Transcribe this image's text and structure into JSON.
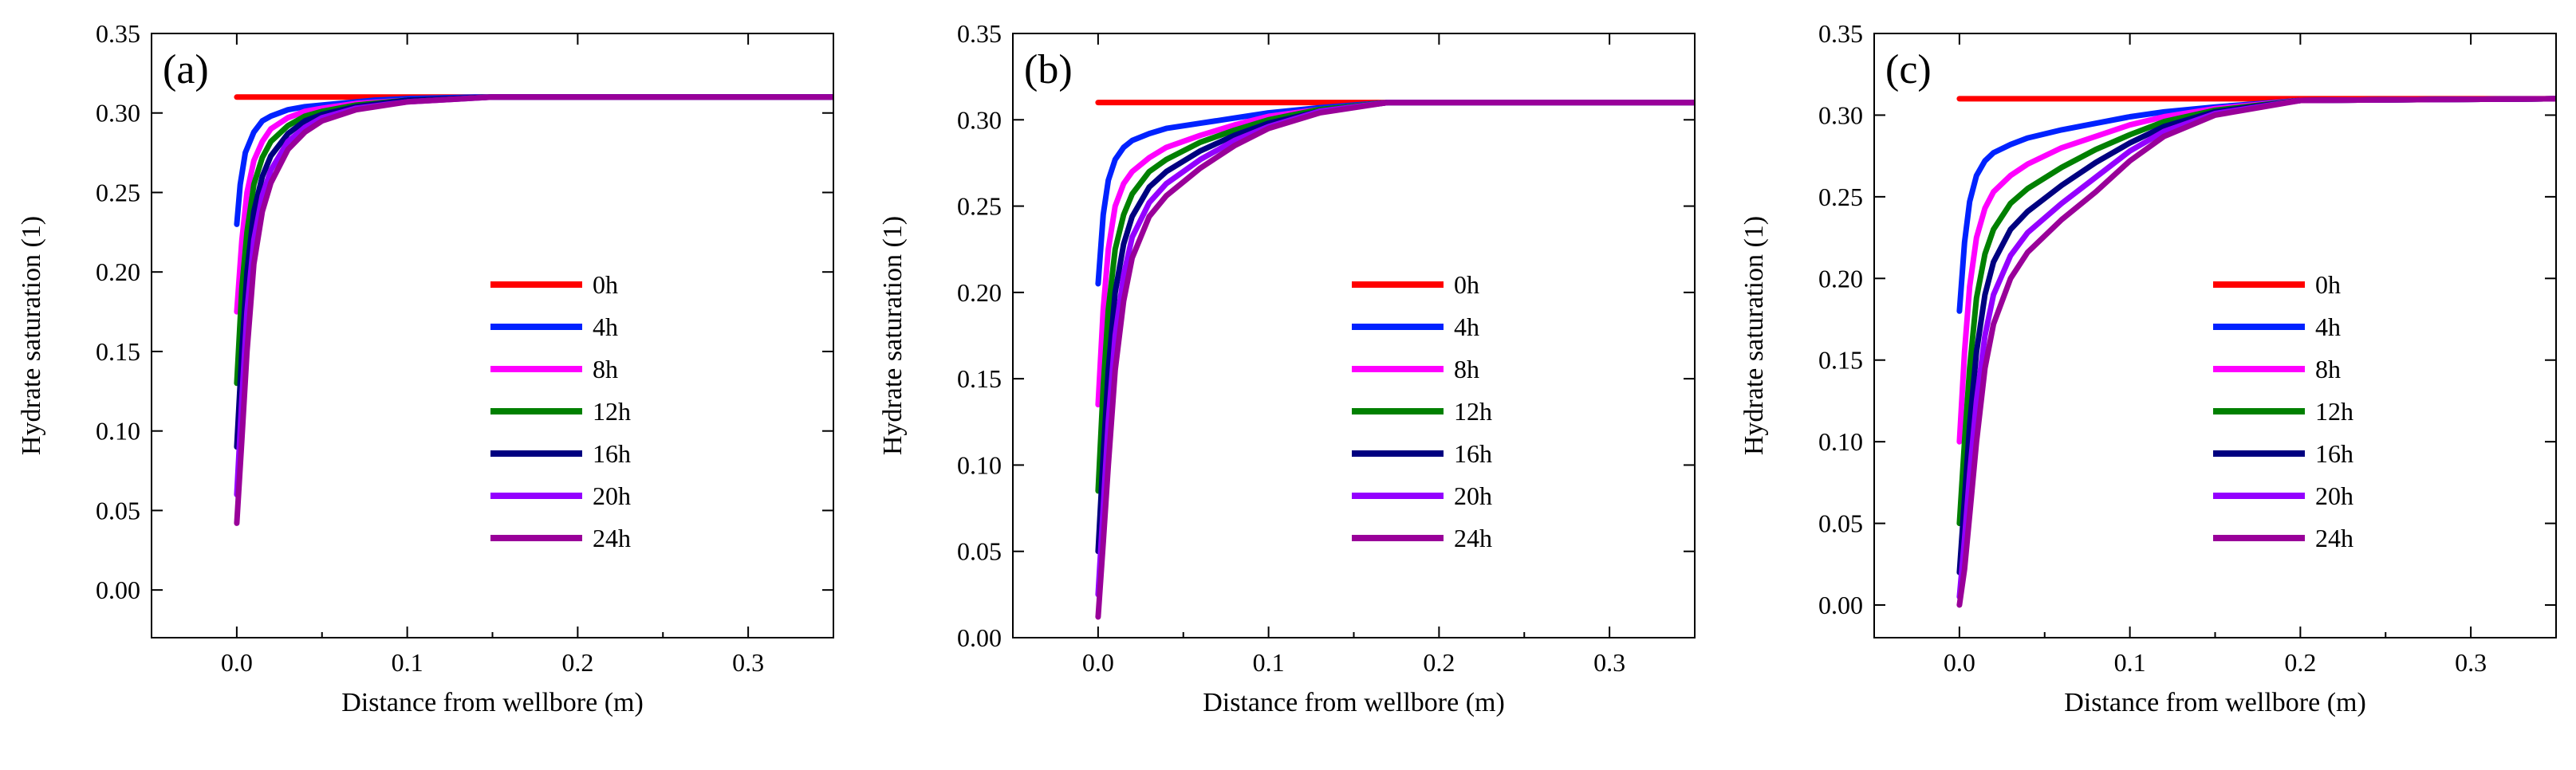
{
  "figure": {
    "panel_count": 3,
    "series_colors": {
      "0h": "#ff0000",
      "4h": "#0022ff",
      "8h": "#ff00ff",
      "12h": "#008000",
      "16h": "#000080",
      "20h": "#9400ff",
      "24h": "#990099"
    }
  },
  "chart_data": [
    {
      "type": "line",
      "panel_label": "(a)",
      "xlabel": "Distance from wellbore (m)",
      "ylabel": "Hydrate saturation (1)",
      "xlim": [
        -0.05,
        0.35
      ],
      "ylim": [
        -0.03,
        0.35
      ],
      "xticks": [
        0.0,
        0.1,
        0.2,
        0.3
      ],
      "xtick_labels": [
        "0.0",
        "0.1",
        "0.2",
        "0.3"
      ],
      "yticks": [
        0.0,
        0.05,
        0.1,
        0.15,
        0.2,
        0.25,
        0.3,
        0.35
      ],
      "ytick_labels": [
        "0.00",
        "0.05",
        "0.10",
        "0.15",
        "0.20",
        "0.25",
        "0.30",
        "0.35"
      ],
      "legend_position": "center-right",
      "series": [
        {
          "name": "0h",
          "x": [
            0.0,
            0.35
          ],
          "y": [
            0.31,
            0.31
          ]
        },
        {
          "name": "4h",
          "x": [
            0.0,
            0.002,
            0.005,
            0.01,
            0.015,
            0.02,
            0.03,
            0.04,
            0.06,
            0.08,
            0.1,
            0.14,
            0.35
          ],
          "y": [
            0.23,
            0.255,
            0.275,
            0.288,
            0.295,
            0.298,
            0.302,
            0.304,
            0.306,
            0.308,
            0.309,
            0.31,
            0.31
          ]
        },
        {
          "name": "8h",
          "x": [
            0.0,
            0.003,
            0.006,
            0.01,
            0.015,
            0.02,
            0.03,
            0.04,
            0.05,
            0.07,
            0.1,
            0.15,
            0.35
          ],
          "y": [
            0.175,
            0.22,
            0.25,
            0.27,
            0.282,
            0.29,
            0.297,
            0.301,
            0.303,
            0.306,
            0.308,
            0.31,
            0.31
          ]
        },
        {
          "name": "12h",
          "x": [
            0.0,
            0.003,
            0.006,
            0.01,
            0.015,
            0.02,
            0.03,
            0.04,
            0.05,
            0.07,
            0.1,
            0.15,
            0.35
          ],
          "y": [
            0.13,
            0.19,
            0.225,
            0.255,
            0.272,
            0.282,
            0.292,
            0.298,
            0.301,
            0.305,
            0.308,
            0.31,
            0.31
          ]
        },
        {
          "name": "16h",
          "x": [
            0.0,
            0.003,
            0.006,
            0.01,
            0.015,
            0.02,
            0.03,
            0.04,
            0.05,
            0.07,
            0.1,
            0.15,
            0.35
          ],
          "y": [
            0.09,
            0.15,
            0.2,
            0.238,
            0.26,
            0.273,
            0.287,
            0.295,
            0.299,
            0.304,
            0.308,
            0.31,
            0.31
          ]
        },
        {
          "name": "20h",
          "x": [
            0.0,
            0.003,
            0.006,
            0.01,
            0.015,
            0.02,
            0.03,
            0.04,
            0.05,
            0.07,
            0.1,
            0.15,
            0.35
          ],
          "y": [
            0.06,
            0.12,
            0.175,
            0.22,
            0.248,
            0.264,
            0.282,
            0.291,
            0.297,
            0.303,
            0.307,
            0.31,
            0.31
          ]
        },
        {
          "name": "24h",
          "x": [
            0.0,
            0.003,
            0.006,
            0.01,
            0.015,
            0.02,
            0.03,
            0.04,
            0.05,
            0.07,
            0.1,
            0.15,
            0.35
          ],
          "y": [
            0.042,
            0.095,
            0.15,
            0.205,
            0.238,
            0.256,
            0.277,
            0.288,
            0.295,
            0.302,
            0.307,
            0.31,
            0.31
          ]
        }
      ]
    },
    {
      "type": "line",
      "panel_label": "(b)",
      "xlabel": "Distance from wellbore (m)",
      "ylabel": "Hydrate saturation (1)",
      "xlim": [
        -0.05,
        0.35
      ],
      "ylim": [
        0.0,
        0.35
      ],
      "xticks": [
        0.0,
        0.1,
        0.2,
        0.3
      ],
      "xtick_labels": [
        "0.0",
        "0.1",
        "0.2",
        "0.3"
      ],
      "yticks": [
        0.0,
        0.05,
        0.1,
        0.15,
        0.2,
        0.25,
        0.3,
        0.35
      ],
      "ytick_labels": [
        "0.00",
        "0.05",
        "0.10",
        "0.15",
        "0.20",
        "0.25",
        "0.30",
        "0.35"
      ],
      "legend_position": "center-right",
      "series": [
        {
          "name": "0h",
          "x": [
            0.0,
            0.35
          ],
          "y": [
            0.31,
            0.31
          ]
        },
        {
          "name": "4h",
          "x": [
            0.0,
            0.003,
            0.006,
            0.01,
            0.015,
            0.02,
            0.03,
            0.04,
            0.06,
            0.08,
            0.1,
            0.13,
            0.17,
            0.35
          ],
          "y": [
            0.205,
            0.245,
            0.265,
            0.277,
            0.284,
            0.288,
            0.292,
            0.295,
            0.298,
            0.301,
            0.304,
            0.307,
            0.31,
            0.31
          ]
        },
        {
          "name": "8h",
          "x": [
            0.0,
            0.003,
            0.006,
            0.01,
            0.015,
            0.02,
            0.03,
            0.04,
            0.06,
            0.08,
            0.1,
            0.13,
            0.17,
            0.35
          ],
          "y": [
            0.135,
            0.19,
            0.225,
            0.25,
            0.263,
            0.27,
            0.278,
            0.284,
            0.291,
            0.297,
            0.302,
            0.306,
            0.31,
            0.31
          ]
        },
        {
          "name": "12h",
          "x": [
            0.0,
            0.003,
            0.006,
            0.01,
            0.015,
            0.02,
            0.03,
            0.04,
            0.06,
            0.08,
            0.1,
            0.13,
            0.17,
            0.35
          ],
          "y": [
            0.085,
            0.145,
            0.19,
            0.225,
            0.245,
            0.257,
            0.27,
            0.277,
            0.287,
            0.294,
            0.3,
            0.306,
            0.31,
            0.31
          ]
        },
        {
          "name": "16h",
          "x": [
            0.0,
            0.003,
            0.006,
            0.01,
            0.015,
            0.02,
            0.03,
            0.04,
            0.06,
            0.08,
            0.1,
            0.13,
            0.17,
            0.35
          ],
          "y": [
            0.05,
            0.105,
            0.155,
            0.2,
            0.228,
            0.244,
            0.261,
            0.27,
            0.282,
            0.291,
            0.298,
            0.305,
            0.31,
            0.31
          ]
        },
        {
          "name": "20h",
          "x": [
            0.0,
            0.003,
            0.006,
            0.01,
            0.015,
            0.02,
            0.03,
            0.04,
            0.06,
            0.08,
            0.1,
            0.13,
            0.17,
            0.35
          ],
          "y": [
            0.025,
            0.075,
            0.125,
            0.175,
            0.21,
            0.232,
            0.252,
            0.263,
            0.277,
            0.288,
            0.296,
            0.305,
            0.31,
            0.31
          ]
        },
        {
          "name": "24h",
          "x": [
            0.0,
            0.003,
            0.006,
            0.01,
            0.015,
            0.02,
            0.03,
            0.04,
            0.06,
            0.08,
            0.1,
            0.13,
            0.17,
            0.35
          ],
          "y": [
            0.012,
            0.055,
            0.1,
            0.155,
            0.195,
            0.22,
            0.244,
            0.256,
            0.272,
            0.285,
            0.295,
            0.304,
            0.31,
            0.31
          ]
        }
      ]
    },
    {
      "type": "line",
      "panel_label": "(c)",
      "xlabel": "Distance from wellbore (m)",
      "ylabel": "Hydrate saturation (1)",
      "xlim": [
        -0.05,
        0.35
      ],
      "ylim": [
        -0.02,
        0.35
      ],
      "xticks": [
        0.0,
        0.1,
        0.2,
        0.3
      ],
      "xtick_labels": [
        "0.0",
        "0.1",
        "0.2",
        "0.3"
      ],
      "yticks": [
        0.0,
        0.05,
        0.1,
        0.15,
        0.2,
        0.25,
        0.3,
        0.35
      ],
      "ytick_labels": [
        "0.00",
        "0.05",
        "0.10",
        "0.15",
        "0.20",
        "0.25",
        "0.30",
        "0.35"
      ],
      "legend_position": "center-right",
      "series": [
        {
          "name": "0h",
          "x": [
            0.0,
            0.35
          ],
          "y": [
            0.31,
            0.31
          ]
        },
        {
          "name": "4h",
          "x": [
            0.0,
            0.003,
            0.006,
            0.01,
            0.015,
            0.02,
            0.03,
            0.04,
            0.06,
            0.08,
            0.1,
            0.12,
            0.15,
            0.2,
            0.35
          ],
          "y": [
            0.18,
            0.222,
            0.247,
            0.263,
            0.272,
            0.277,
            0.282,
            0.286,
            0.291,
            0.295,
            0.299,
            0.302,
            0.305,
            0.309,
            0.31
          ]
        },
        {
          "name": "8h",
          "x": [
            0.0,
            0.003,
            0.006,
            0.01,
            0.015,
            0.02,
            0.03,
            0.04,
            0.06,
            0.08,
            0.1,
            0.12,
            0.15,
            0.2,
            0.35
          ],
          "y": [
            0.1,
            0.155,
            0.195,
            0.225,
            0.243,
            0.253,
            0.263,
            0.27,
            0.28,
            0.287,
            0.294,
            0.299,
            0.304,
            0.309,
            0.31
          ]
        },
        {
          "name": "12h",
          "x": [
            0.0,
            0.003,
            0.006,
            0.01,
            0.015,
            0.02,
            0.03,
            0.04,
            0.06,
            0.08,
            0.1,
            0.12,
            0.15,
            0.2,
            0.35
          ],
          "y": [
            0.05,
            0.1,
            0.145,
            0.188,
            0.215,
            0.23,
            0.246,
            0.255,
            0.268,
            0.279,
            0.288,
            0.296,
            0.303,
            0.309,
            0.31
          ]
        },
        {
          "name": "16h",
          "x": [
            0.0,
            0.003,
            0.006,
            0.01,
            0.015,
            0.02,
            0.03,
            0.04,
            0.06,
            0.08,
            0.1,
            0.12,
            0.15,
            0.2,
            0.35
          ],
          "y": [
            0.02,
            0.065,
            0.11,
            0.155,
            0.19,
            0.21,
            0.23,
            0.241,
            0.257,
            0.271,
            0.283,
            0.293,
            0.302,
            0.309,
            0.31
          ]
        },
        {
          "name": "20h",
          "x": [
            0.0,
            0.003,
            0.006,
            0.01,
            0.015,
            0.02,
            0.03,
            0.04,
            0.06,
            0.08,
            0.1,
            0.12,
            0.15,
            0.2,
            0.35
          ],
          "y": [
            0.005,
            0.04,
            0.08,
            0.125,
            0.165,
            0.19,
            0.214,
            0.228,
            0.246,
            0.262,
            0.278,
            0.29,
            0.301,
            0.309,
            0.31
          ]
        },
        {
          "name": "24h",
          "x": [
            0.0,
            0.003,
            0.006,
            0.01,
            0.015,
            0.02,
            0.03,
            0.04,
            0.06,
            0.08,
            0.1,
            0.12,
            0.15,
            0.2,
            0.35
          ],
          "y": [
            0.0,
            0.022,
            0.055,
            0.1,
            0.145,
            0.172,
            0.2,
            0.216,
            0.236,
            0.253,
            0.272,
            0.287,
            0.3,
            0.309,
            0.31
          ]
        }
      ]
    }
  ]
}
